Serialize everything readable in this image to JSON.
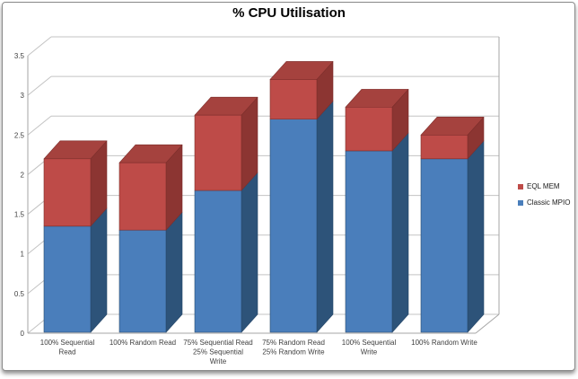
{
  "window": {
    "title": "% CPU Utilisation"
  },
  "chart_data": {
    "type": "bar",
    "subtype": "3d-stacked-column",
    "title": "% CPU Utilisation",
    "categories": [
      "100% Sequential Read",
      "100% Random Read",
      "75% Sequential Read 25% Sequential Write",
      "75% Random Read 25% Random Write",
      "100% Sequential Write",
      "100% Random Write"
    ],
    "categories_lines": [
      [
        "100% Sequential",
        "Read"
      ],
      [
        "100% Random Read"
      ],
      [
        "75% Sequential Read",
        "25% Sequential",
        "Write"
      ],
      [
        "75% Random Read",
        "25% Random Write"
      ],
      [
        "100% Sequential",
        "Write"
      ],
      [
        "100% Random Write"
      ]
    ],
    "series": [
      {
        "name": "Classic MPIO",
        "values": [
          1.35,
          1.3,
          1.8,
          2.7,
          2.3,
          2.2
        ],
        "front": "#4A7EBB",
        "side": "#2D5379",
        "top": "#3A6596",
        "edge": "#27496B"
      },
      {
        "name": "EQL MEM",
        "values": [
          0.85,
          0.85,
          0.95,
          0.5,
          0.55,
          0.3
        ],
        "front": "#BE4B48",
        "side": "#8C3532",
        "top": "#A5423E",
        "edge": "#7C2E2B"
      }
    ],
    "totals": [
      2.2,
      2.15,
      2.75,
      3.2,
      2.85,
      2.5
    ],
    "y_axis": {
      "min": 0,
      "max": 3.5,
      "step": 0.5,
      "ticks": [
        "0",
        "0.5",
        "1",
        "1.5",
        "2",
        "2.5",
        "3",
        "3.5"
      ]
    },
    "legend": {
      "position": "right",
      "entries": [
        {
          "label": "EQL MEM",
          "color": "#BE4B48"
        },
        {
          "label": "Classic MPIO",
          "color": "#4A7EBB"
        }
      ]
    },
    "grid": true,
    "colors": {
      "gridline": "#C3C3C3",
      "axis_line": "#A6A6A6",
      "tick_text": "#404040",
      "title_text": "#000000"
    }
  }
}
